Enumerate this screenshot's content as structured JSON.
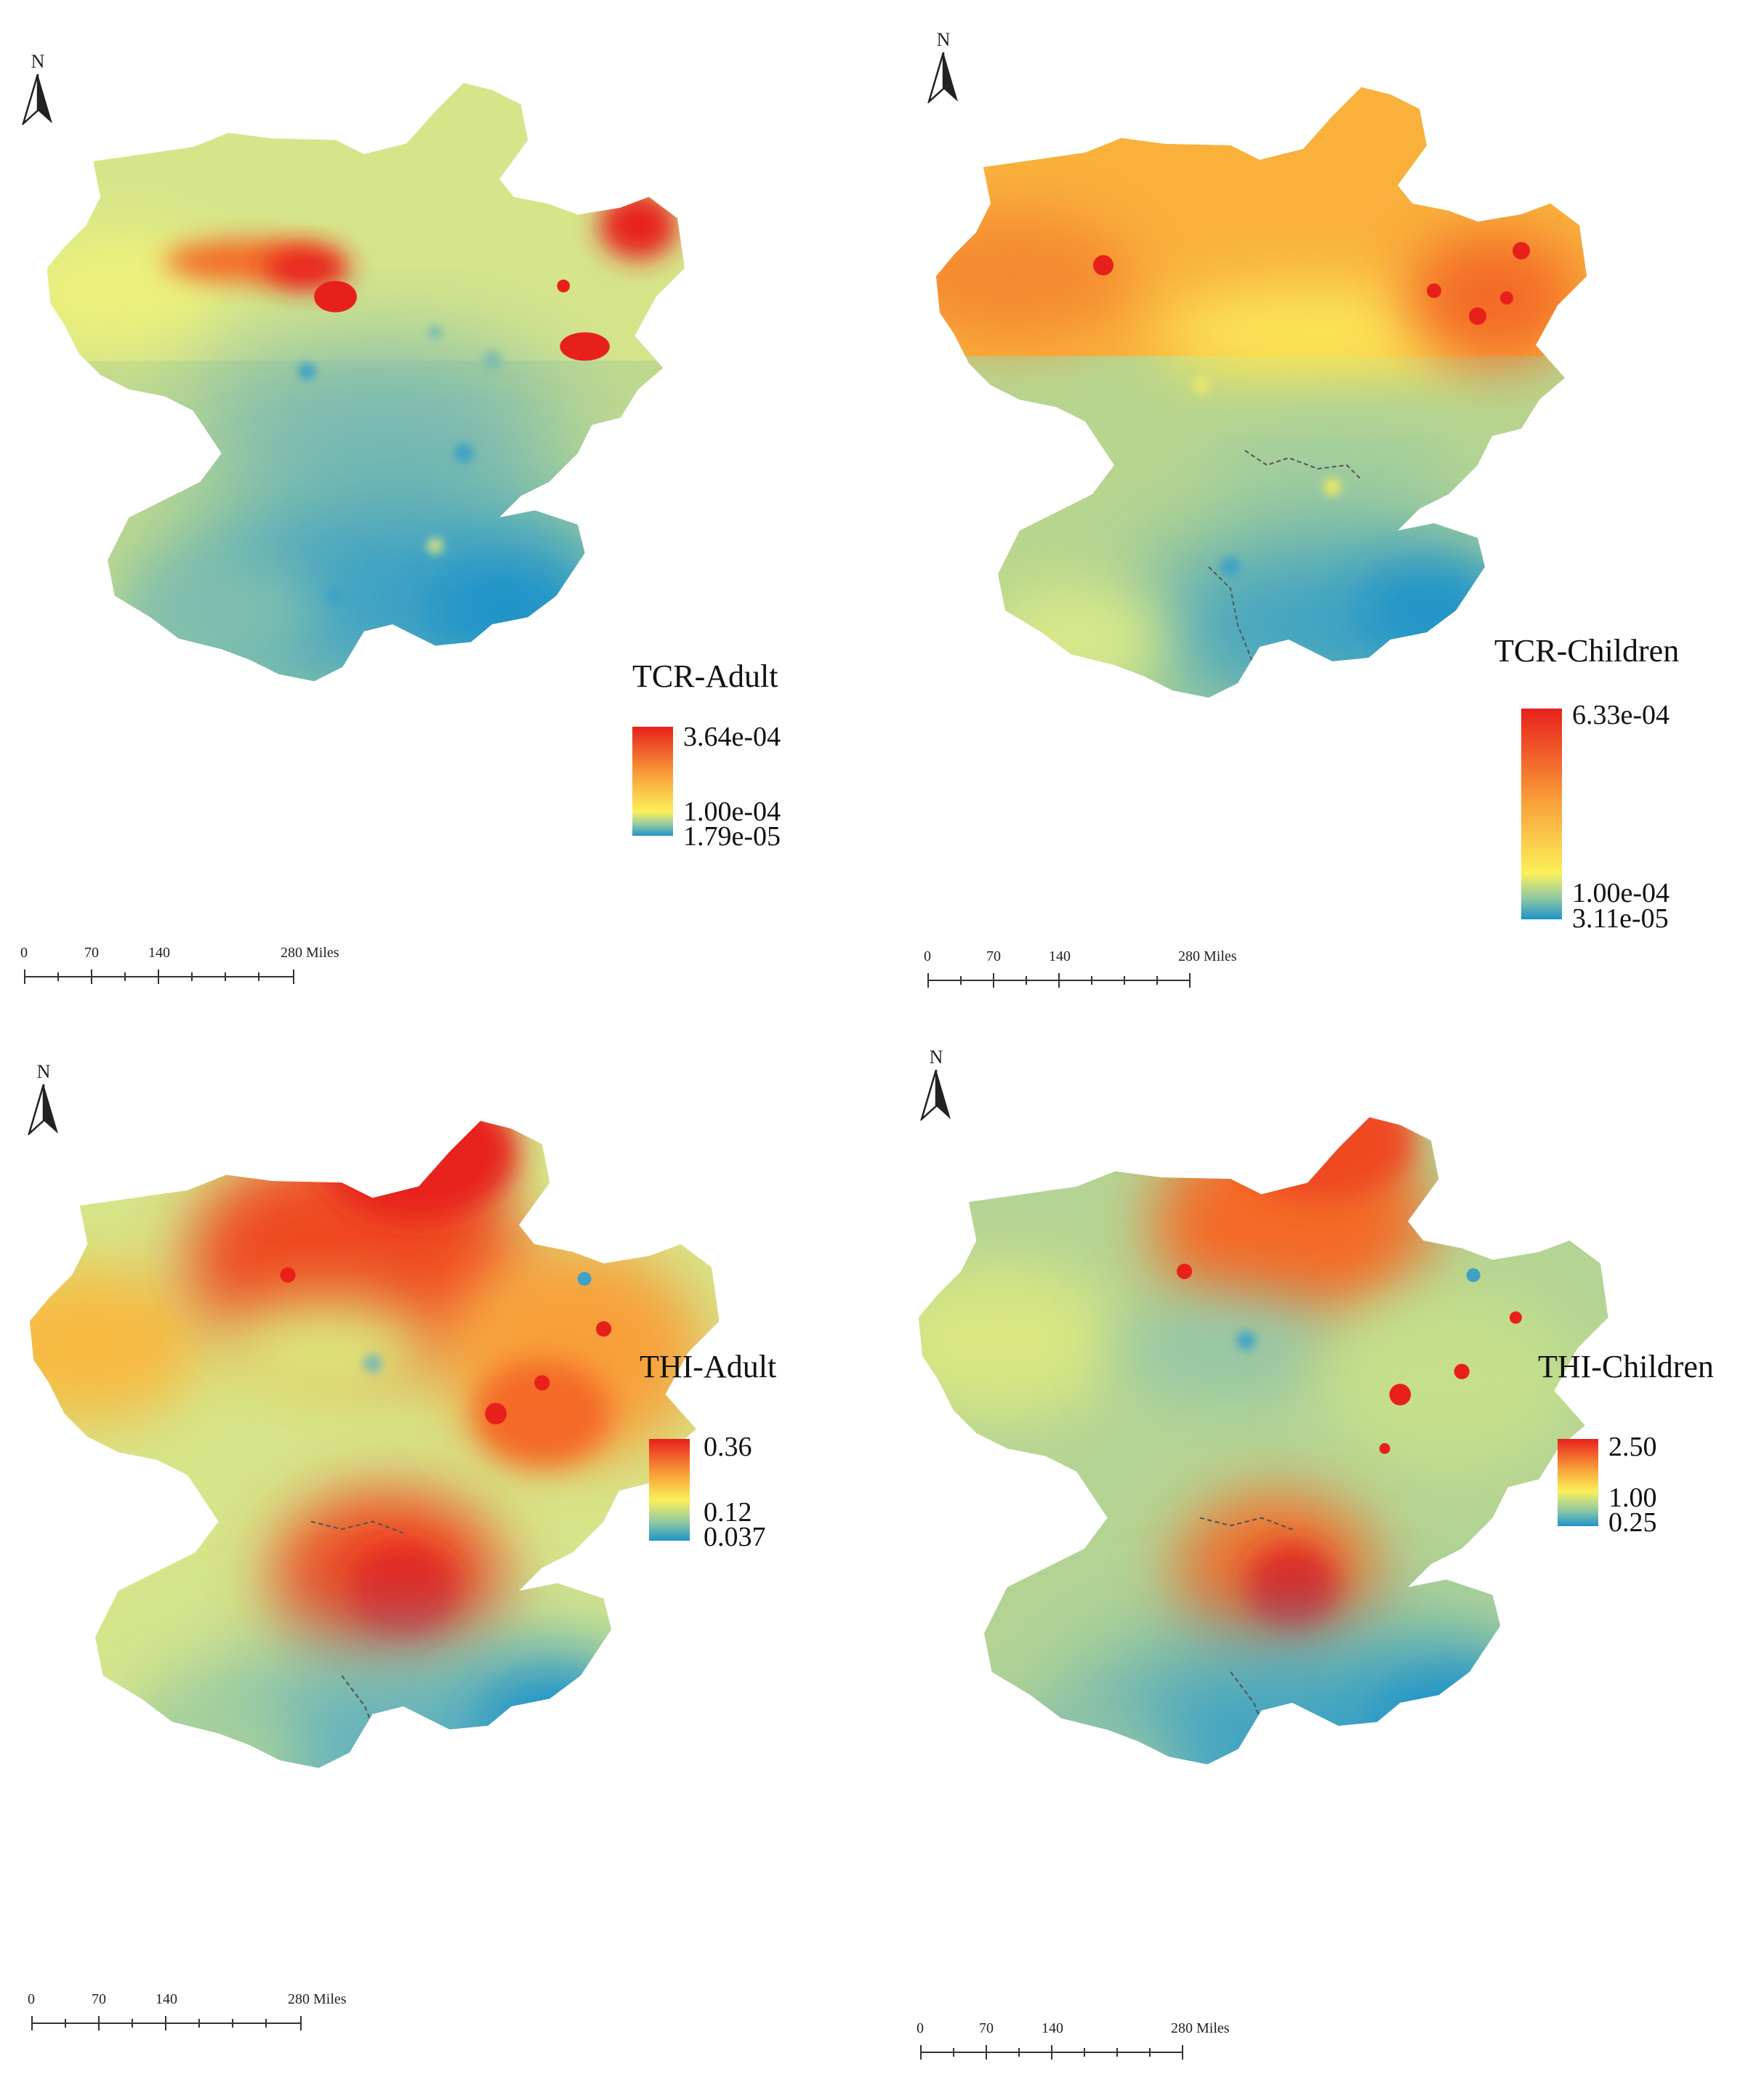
{
  "north_arrow_label": "N",
  "scale_bar": {
    "ticks": [
      "0",
      "70",
      "140",
      "280 Miles"
    ]
  },
  "colors": {
    "ramp_high": "#e8201c",
    "ramp_mid_high": "#f9a23a",
    "ramp_mid": "#fbf05a",
    "ramp_low_mid": "#8fc9a4",
    "ramp_low": "#1f93c9"
  },
  "panels": [
    {
      "id": "tcr-adult",
      "legend_title": "TCR-Adult",
      "legend_values": [
        "3.64e-04",
        "1.00e-04",
        "1.79e-05"
      ]
    },
    {
      "id": "tcr-children",
      "legend_title": "TCR-Children",
      "legend_values": [
        "6.33e-04",
        "1.00e-04",
        "3.11e-05"
      ]
    },
    {
      "id": "thi-adult",
      "legend_title": "THI-Adult",
      "legend_values": [
        "0.36",
        "0.12",
        "0.037"
      ]
    },
    {
      "id": "thi-children",
      "legend_title": "THI-Children",
      "legend_values": [
        "2.50",
        "1.00",
        "0.25"
      ]
    }
  ]
}
